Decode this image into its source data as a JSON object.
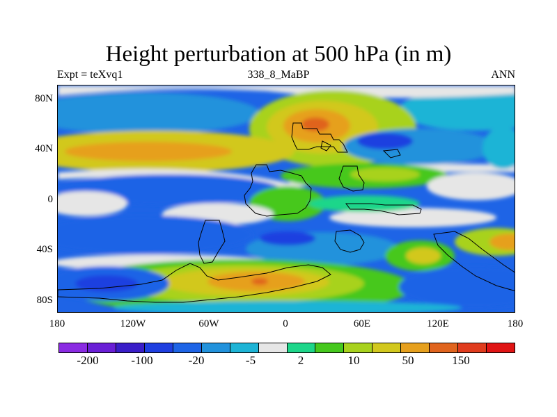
{
  "title": "Height perturbation at 500 hPa (in m)",
  "subtitle_left": "Expt = teXvq1",
  "subtitle_center": "338_8_MaBP",
  "subtitle_right": "ANN",
  "y_ticks": [
    "80N",
    "40N",
    "0",
    "40S",
    "80S"
  ],
  "x_ticks": [
    "180",
    "120W",
    "60W",
    "0",
    "60E",
    "120E",
    "180"
  ],
  "colorbar": {
    "colors": [
      "#8a2be2",
      "#6a1fd6",
      "#3a1ec8",
      "#1f3fe0",
      "#1e64e6",
      "#2292dc",
      "#1eb4d6",
      "#e6e6e6",
      "#1ed68a",
      "#46c81e",
      "#a8d21e",
      "#d2c81e",
      "#e6a01e",
      "#e0641e",
      "#e03c1e",
      "#e01414"
    ],
    "labels": [
      "-200",
      "-100",
      "-20",
      "-5",
      "2",
      "10",
      "50",
      "150"
    ]
  }
}
